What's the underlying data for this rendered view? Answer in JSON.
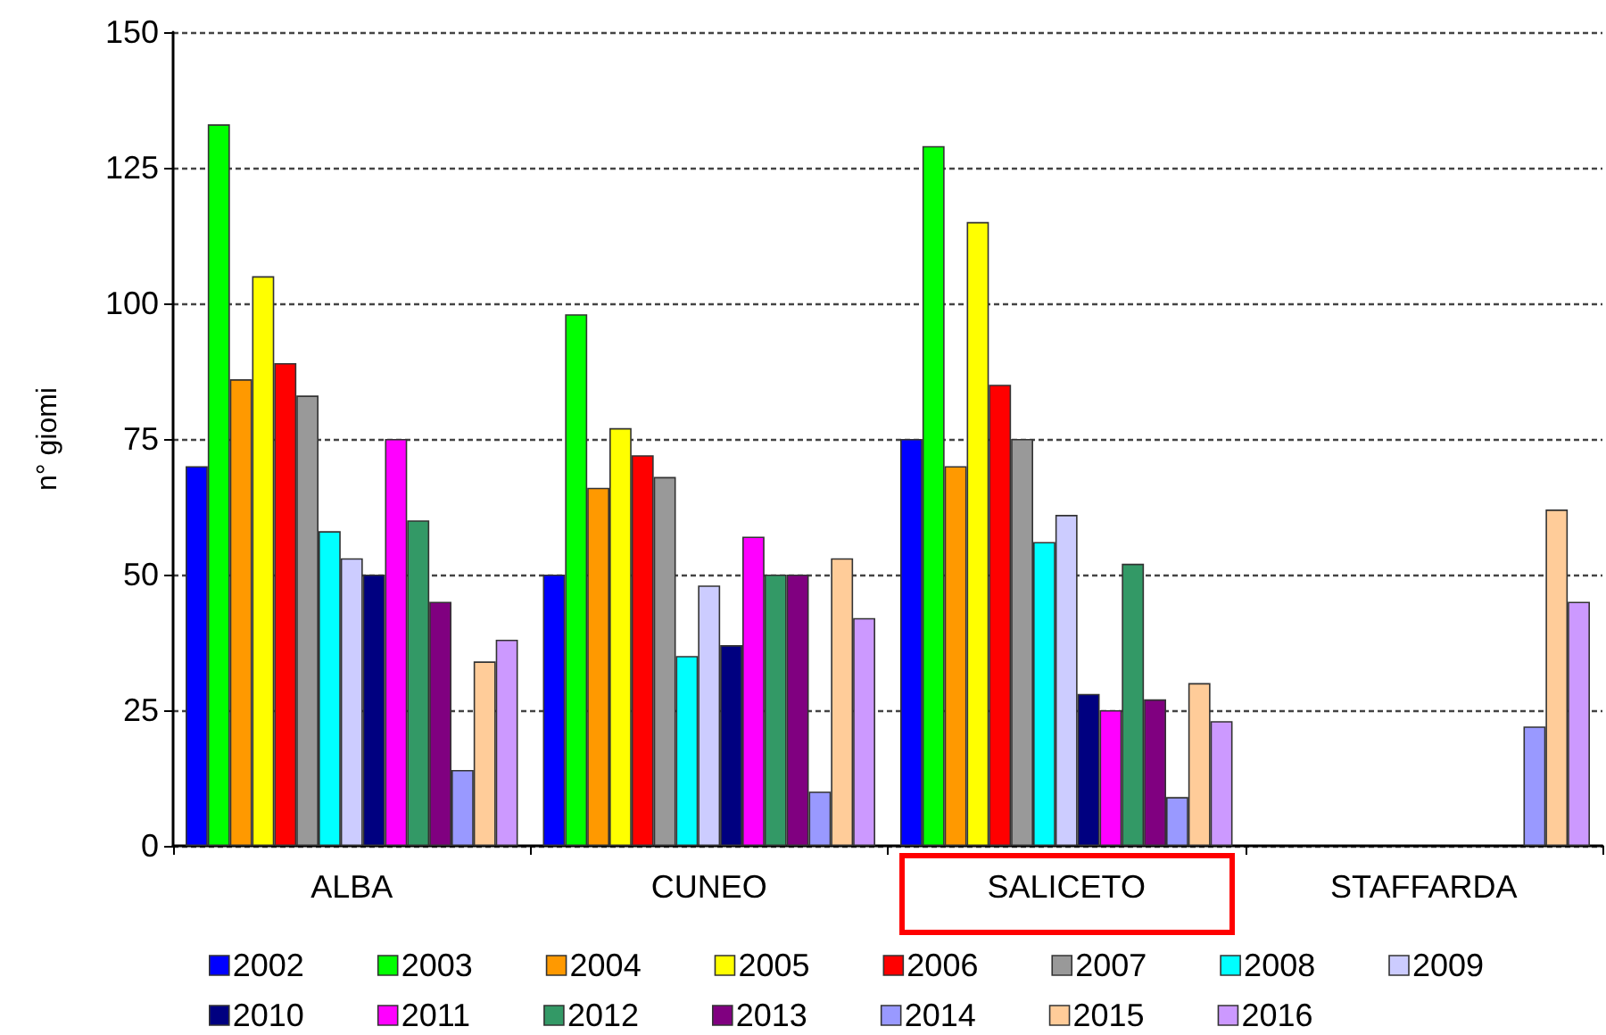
{
  "chart_data": {
    "type": "bar",
    "ylabel": "n° giomi",
    "categories": [
      "ALBA",
      "CUNEO",
      "SALICETO",
      "STAFFARDA"
    ],
    "series": [
      {
        "name": "2002",
        "color": "#0000ff",
        "values": [
          70,
          50,
          75,
          null
        ]
      },
      {
        "name": "2003",
        "color": "#00ff00",
        "values": [
          133,
          98,
          129,
          null
        ]
      },
      {
        "name": "2004",
        "color": "#ff9900",
        "values": [
          86,
          66,
          70,
          null
        ]
      },
      {
        "name": "2005",
        "color": "#ffff00",
        "values": [
          105,
          77,
          115,
          null
        ]
      },
      {
        "name": "2006",
        "color": "#ff0000",
        "values": [
          89,
          72,
          85,
          null
        ]
      },
      {
        "name": "2007",
        "color": "#999999",
        "values": [
          83,
          68,
          75,
          null
        ]
      },
      {
        "name": "2008",
        "color": "#00ffff",
        "values": [
          58,
          35,
          56,
          null
        ]
      },
      {
        "name": "2009",
        "color": "#ccccff",
        "values": [
          53,
          48,
          61,
          null
        ]
      },
      {
        "name": "2010",
        "color": "#000080",
        "values": [
          50,
          37,
          28,
          null
        ]
      },
      {
        "name": "2011",
        "color": "#ff00ff",
        "values": [
          75,
          57,
          25,
          null
        ]
      },
      {
        "name": "2012",
        "color": "#339966",
        "values": [
          60,
          50,
          52,
          null
        ]
      },
      {
        "name": "2013",
        "color": "#800080",
        "values": [
          45,
          50,
          27,
          null
        ]
      },
      {
        "name": "2014",
        "color": "#9999ff",
        "values": [
          14,
          10,
          9,
          22
        ]
      },
      {
        "name": "2015",
        "color": "#ffcc99",
        "values": [
          34,
          53,
          30,
          62
        ]
      },
      {
        "name": "2016",
        "color": "#cc99ff",
        "values": [
          38,
          42,
          23,
          45
        ]
      }
    ],
    "ylim": [
      0,
      150
    ],
    "yticks": [
      0,
      25,
      50,
      75,
      100,
      125,
      150
    ],
    "grid": "y",
    "legend": "bottom"
  }
}
